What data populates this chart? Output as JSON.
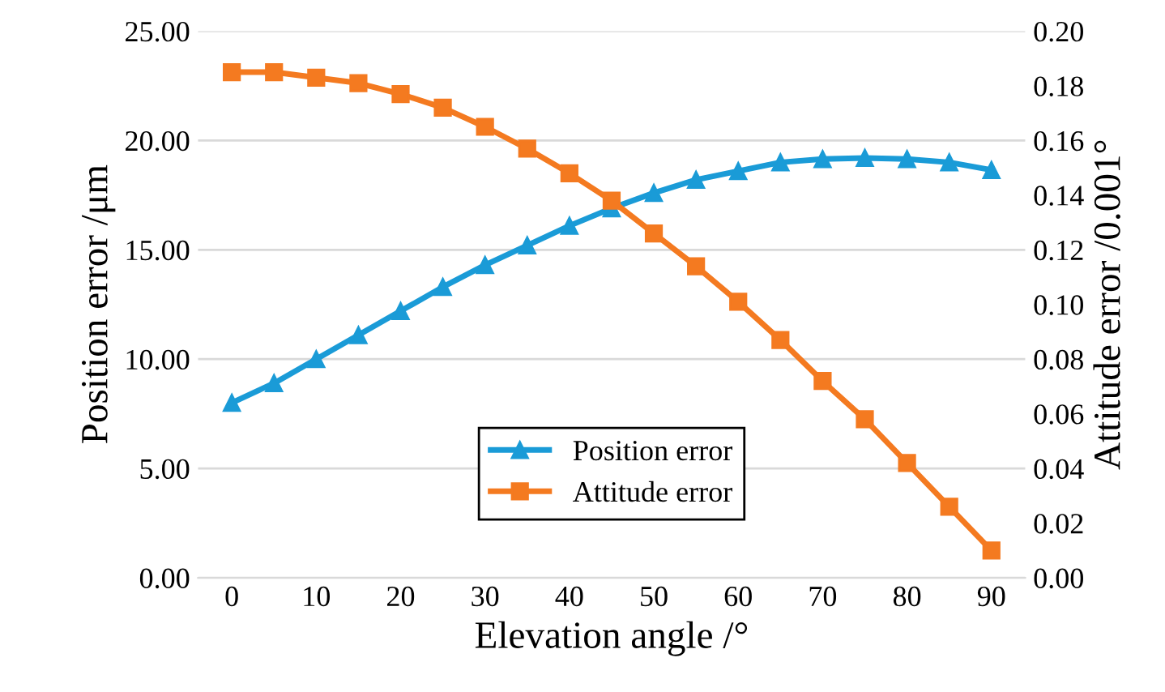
{
  "chart_data": {
    "type": "line",
    "xlabel": "Elevation angle /°",
    "ylabel": "Position error /μm",
    "y2label": "Attitude error /0.001°",
    "x": [
      0,
      5,
      10,
      15,
      20,
      25,
      30,
      35,
      40,
      45,
      50,
      55,
      60,
      65,
      70,
      75,
      80,
      85,
      90
    ],
    "series": [
      {
        "name": "Position error",
        "color": "#1a9bd7",
        "marker": "triangle",
        "values": [
          8.0,
          8.9,
          10.0,
          11.1,
          12.2,
          13.3,
          14.3,
          15.2,
          16.1,
          16.9,
          17.6,
          18.2,
          18.6,
          19.0,
          19.15,
          19.2,
          19.15,
          19.0,
          18.65
        ]
      },
      {
        "name": "Attitude error",
        "color": "#f47a20",
        "marker": "square",
        "axis": "y2",
        "values": [
          0.185,
          0.185,
          0.183,
          0.181,
          0.177,
          0.172,
          0.165,
          0.157,
          0.148,
          0.138,
          0.126,
          0.114,
          0.101,
          0.087,
          0.072,
          0.058,
          0.042,
          0.026,
          0.01
        ]
      }
    ],
    "xlim": [
      -4,
      94
    ],
    "xticks": [
      0,
      10,
      20,
      30,
      40,
      50,
      60,
      70,
      80,
      90
    ],
    "ylim": [
      0,
      25
    ],
    "yticks": [
      {
        "value": 0,
        "label": "0.00"
      },
      {
        "value": 5,
        "label": "5.00"
      },
      {
        "value": 10,
        "label": "10.00"
      },
      {
        "value": 15,
        "label": "15.00"
      },
      {
        "value": 20,
        "label": "20.00"
      },
      {
        "value": 25,
        "label": "25.00"
      }
    ],
    "y2lim": [
      0,
      0.2
    ],
    "y2ticks": [
      {
        "value": 0,
        "label": "0.00"
      },
      {
        "value": 0.02,
        "label": "0.02"
      },
      {
        "value": 0.04,
        "label": "0.04"
      },
      {
        "value": 0.06,
        "label": "0.06"
      },
      {
        "value": 0.08,
        "label": "0.08"
      },
      {
        "value": 0.1,
        "label": "0.10"
      },
      {
        "value": 0.12,
        "label": "0.12"
      },
      {
        "value": 0.14,
        "label": "0.14"
      },
      {
        "value": 0.16,
        "label": "0.16"
      },
      {
        "value": 0.18,
        "label": "0.18"
      },
      {
        "value": 0.2,
        "label": "0.20"
      }
    ],
    "grid": "y",
    "legend": "bottom",
    "line_style": "solid"
  }
}
